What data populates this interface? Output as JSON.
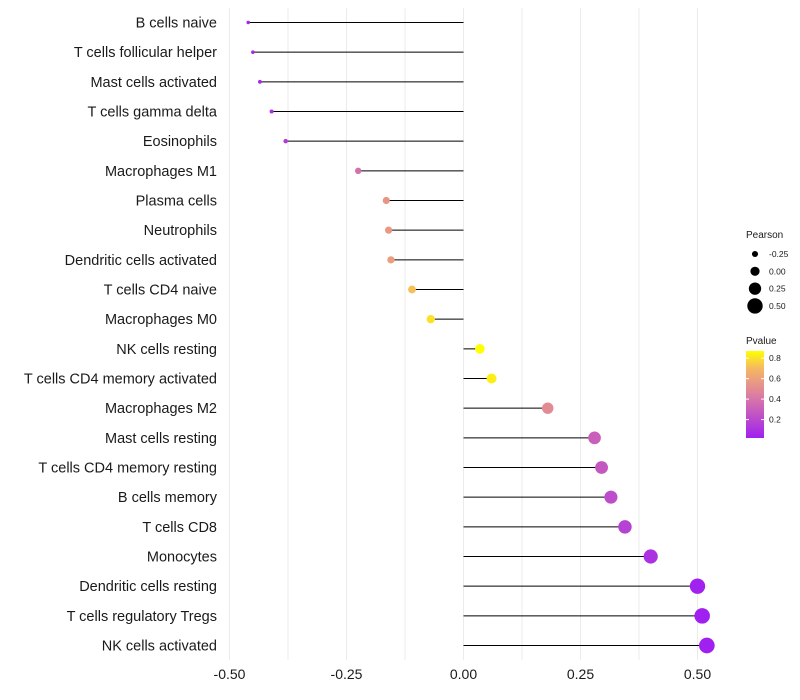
{
  "chart_data": {
    "type": "lollipop",
    "title": "",
    "xlabel": "",
    "ylabel": "",
    "xlim": [
      -0.5,
      0.5
    ],
    "x_ticks": [
      -0.5,
      -0.25,
      0.0,
      0.25,
      0.5
    ],
    "x_tick_labels": [
      "-0.50",
      "-0.25",
      "0.00",
      "0.25",
      "0.50"
    ],
    "grid": true,
    "colors": {
      "low": "#a020f0",
      "high": "#ffff00",
      "stem": "#000000",
      "grid": "#ebebeb"
    },
    "items": [
      {
        "label": "B cells naive",
        "value": -0.46,
        "pvalue": 0.04
      },
      {
        "label": "T cells follicular helper",
        "value": -0.45,
        "pvalue": 0.05
      },
      {
        "label": "Mast cells activated",
        "value": -0.435,
        "pvalue": 0.07
      },
      {
        "label": "T cells gamma delta",
        "value": -0.41,
        "pvalue": 0.1
      },
      {
        "label": "Eosinophils",
        "value": -0.38,
        "pvalue": 0.14
      },
      {
        "label": "Macrophages M1",
        "value": -0.225,
        "pvalue": 0.38
      },
      {
        "label": "Plasma cells",
        "value": -0.165,
        "pvalue": 0.55
      },
      {
        "label": "Neutrophils",
        "value": -0.16,
        "pvalue": 0.56
      },
      {
        "label": "Dendritic cells activated",
        "value": -0.155,
        "pvalue": 0.58
      },
      {
        "label": "T cells CD4 naive",
        "value": -0.11,
        "pvalue": 0.72
      },
      {
        "label": "Macrophages M0",
        "value": -0.07,
        "pvalue": 0.8
      },
      {
        "label": "NK cells resting",
        "value": 0.035,
        "pvalue": 0.87
      },
      {
        "label": "T cells CD4 memory activated",
        "value": 0.06,
        "pvalue": 0.83
      },
      {
        "label": "Macrophages M2",
        "value": 0.18,
        "pvalue": 0.5
      },
      {
        "label": "Mast cells resting",
        "value": 0.28,
        "pvalue": 0.3
      },
      {
        "label": "T cells CD4 memory resting",
        "value": 0.295,
        "pvalue": 0.27
      },
      {
        "label": "B cells memory",
        "value": 0.315,
        "pvalue": 0.22
      },
      {
        "label": "T cells CD8",
        "value": 0.345,
        "pvalue": 0.17
      },
      {
        "label": "Monocytes",
        "value": 0.4,
        "pvalue": 0.1
      },
      {
        "label": "Dendritic cells resting",
        "value": 0.5,
        "pvalue": 0.03
      },
      {
        "label": "T cells regulatory  Tregs",
        "value": 0.51,
        "pvalue": 0.02
      },
      {
        "label": "NK cells activated",
        "value": 0.52,
        "pvalue": 0.02
      }
    ],
    "legend_size": {
      "title": "Pearson",
      "values": [
        -0.25,
        0.0,
        0.25,
        0.5
      ],
      "labels": [
        "-0.25",
        "0.00",
        "0.25",
        "0.50"
      ]
    },
    "legend_color": {
      "title": "Pvalue",
      "range": [
        0.02,
        0.87
      ],
      "ticks": [
        0.8,
        0.6,
        0.4,
        0.2
      ],
      "labels": [
        "0.8",
        "0.6",
        "0.4",
        "0.2"
      ]
    }
  }
}
